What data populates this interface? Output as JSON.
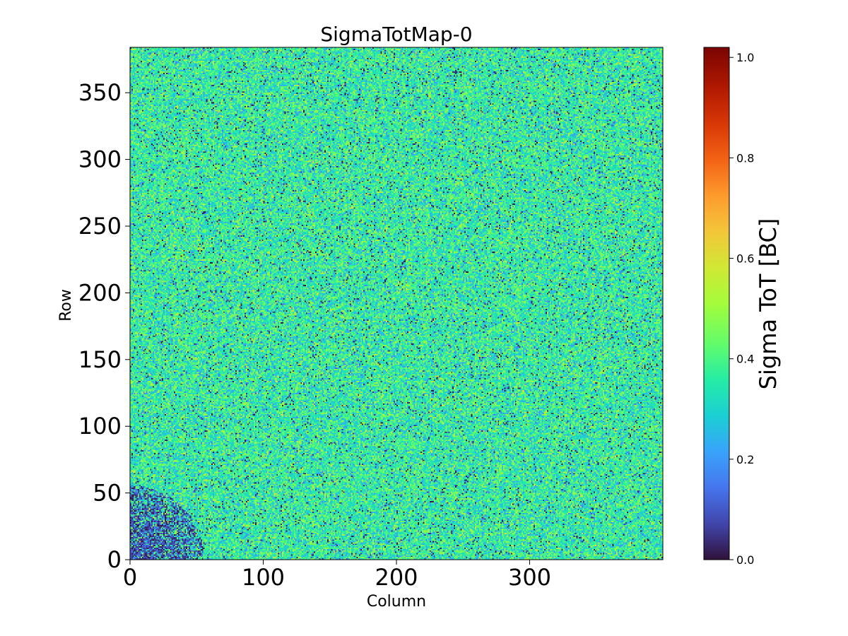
{
  "chart_data": {
    "type": "heatmap",
    "title": "SigmaTotMap-0",
    "xlabel": "Column",
    "ylabel": "Row",
    "xlim": [
      0,
      400
    ],
    "ylim": [
      0,
      384
    ],
    "grid_columns": 400,
    "grid_rows": 384,
    "x_ticks": [
      {
        "value": 0,
        "label": "0"
      },
      {
        "value": 100,
        "label": "100"
      },
      {
        "value": 200,
        "label": "200"
      },
      {
        "value": 300,
        "label": "300"
      }
    ],
    "y_ticks": [
      {
        "value": 0,
        "label": "0"
      },
      {
        "value": 50,
        "label": "50"
      },
      {
        "value": 100,
        "label": "100"
      },
      {
        "value": 150,
        "label": "150"
      },
      {
        "value": 200,
        "label": "200"
      },
      {
        "value": 250,
        "label": "250"
      },
      {
        "value": 300,
        "label": "300"
      },
      {
        "value": 350,
        "label": "350"
      }
    ],
    "colorbar": {
      "label": "Sigma ToT [BC]",
      "colormap": "turbo",
      "vmin": 0.0,
      "vmax": 1.02,
      "ticks": [
        {
          "value": 0.0,
          "label": "0.0"
        },
        {
          "value": 0.2,
          "label": "0.2"
        },
        {
          "value": 0.4,
          "label": "0.4"
        },
        {
          "value": 0.6,
          "label": "0.6"
        },
        {
          "value": 0.8,
          "label": "0.8"
        },
        {
          "value": 1.0,
          "label": "1.0"
        }
      ]
    },
    "value_distribution": {
      "typical_mean": 0.36,
      "typical_spread": 0.09,
      "outlier_low_value": 0.05,
      "low_corner_region": {
        "column_max": 55,
        "row_max": 55
      },
      "low_corner_values": [
        0.0,
        0.15
      ]
    }
  }
}
